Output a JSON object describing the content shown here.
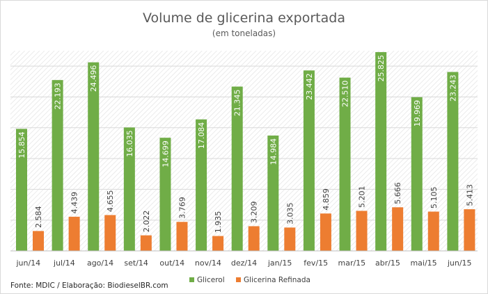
{
  "chart_data": {
    "type": "bar",
    "title": "Volume de glicerina exportada",
    "subtitle": "(em toneladas)",
    "categories": [
      "jun/14",
      "jul/14",
      "ago/14",
      "set/14",
      "out/14",
      "nov/14",
      "dez/14",
      "jan/15",
      "fev/15",
      "mar/15",
      "abr/15",
      "mai/15",
      "jun/15"
    ],
    "series": [
      {
        "name": "Glicerol",
        "color": "#70ad47",
        "values": [
          15854,
          22193,
          24496,
          16035,
          14699,
          17084,
          21345,
          14984,
          23442,
          22510,
          25825,
          19969,
          23243
        ],
        "labels": [
          "15.854",
          "22.193",
          "24.496",
          "16.035",
          "14.699",
          "17.084",
          "21.345",
          "14.984",
          "23.442",
          "22.510",
          "25.825",
          "19.969",
          "23.243"
        ]
      },
      {
        "name": "Glicerina Refinada",
        "color": "#ed7d31",
        "values": [
          2584,
          4439,
          4655,
          2022,
          3769,
          1935,
          3209,
          3035,
          4859,
          5201,
          5666,
          5105,
          5413
        ],
        "labels": [
          "2.584",
          "4.439",
          "4.655",
          "2.022",
          "3.769",
          "1.935",
          "3.209",
          "3.035",
          "4.859",
          "5.201",
          "5.666",
          "5.105",
          "5.413"
        ]
      }
    ],
    "ylim": [
      0,
      26000
    ],
    "grid": true,
    "legend_position": "bottom",
    "source": "Fonte: MDIC / Elaboração: BiodieselBR.com"
  }
}
